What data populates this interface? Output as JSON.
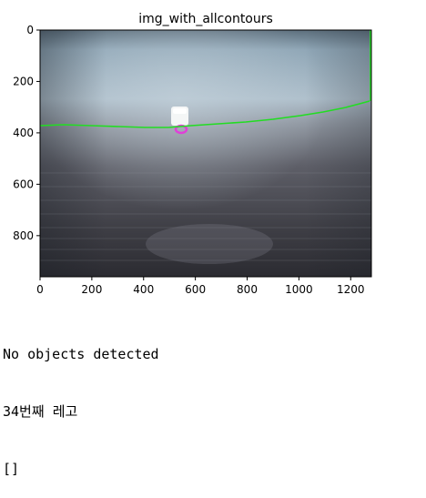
{
  "figure": {
    "title": "img_with_allcontours",
    "x_ticks": [
      "0",
      "200",
      "400",
      "600",
      "800",
      "1000",
      "1200"
    ],
    "y_ticks": [
      "0",
      "200",
      "400",
      "600",
      "800"
    ],
    "contour_color": "#22dd22",
    "marker_color": "#e040d8"
  },
  "output": {
    "lines": [
      "No objects detected",
      "34번째 레고",
      "[]"
    ]
  }
}
